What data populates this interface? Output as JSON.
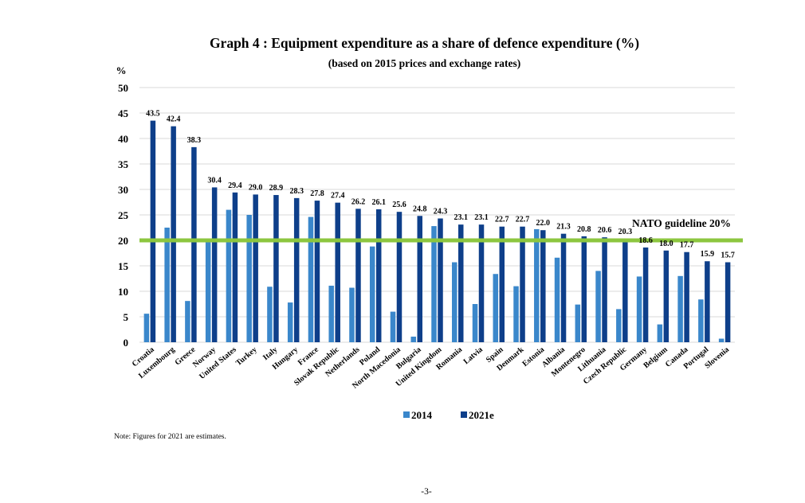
{
  "chart_data": {
    "type": "bar",
    "title": "Graph 4 : Equipment expenditure as a share of defence expenditure (%)",
    "subtitle": "(based on 2015 prices and exchange rates)",
    "ylabel": "%",
    "xlabel": "",
    "ylim": [
      0,
      50
    ],
    "yticks": [
      0,
      5,
      10,
      15,
      20,
      25,
      30,
      35,
      40,
      45,
      50
    ],
    "grid": true,
    "legend_position": "bottom-center",
    "categories": [
      "Croatia",
      "Luxembourg",
      "Greece",
      "Norway",
      "United States",
      "Turkey",
      "Italy",
      "Hungary",
      "France",
      "Slovak Republic",
      "Netherlands",
      "Poland",
      "North Macedonia",
      "Bulgaria",
      "United Kingdom",
      "Romania",
      "Latvia",
      "Spain",
      "Denmark",
      "Estonia",
      "Albania",
      "Montenegro",
      "Lithuania",
      "Czech Republic",
      "Germany",
      "Belgium",
      "Canada",
      "Portugal",
      "Slovenia"
    ],
    "series": [
      {
        "name": "2014",
        "color": "#3a87cb",
        "values": [
          5.6,
          22.5,
          8.1,
          20.0,
          26.0,
          25.0,
          10.9,
          7.8,
          24.6,
          11.1,
          10.7,
          18.8,
          6.0,
          1.1,
          22.8,
          15.7,
          7.5,
          13.4,
          11.0,
          22.2,
          16.6,
          7.4,
          14.0,
          6.5,
          12.9,
          3.5,
          13.0,
          8.4,
          0.7
        ],
        "labeled": false
      },
      {
        "name": "2021e",
        "color": "#0e3f8a",
        "values": [
          43.5,
          42.4,
          38.3,
          30.4,
          29.4,
          29.0,
          28.9,
          28.3,
          27.8,
          27.4,
          26.2,
          26.1,
          25.6,
          24.8,
          24.3,
          23.1,
          23.1,
          22.7,
          22.7,
          22.0,
          21.3,
          20.8,
          20.6,
          20.3,
          18.6,
          18.0,
          17.7,
          15.9,
          15.7
        ],
        "labels": [
          "43.5",
          "42.4",
          "38.3",
          "30.4",
          "29.4",
          "29.0",
          "28.9",
          "28.3",
          "27.8",
          "27.4",
          "26.2",
          "26.1",
          "25.6",
          "24.8",
          "24.3",
          "23.1",
          "23.1",
          "22.7",
          "22.7",
          "22.0",
          "21.3",
          "20.8",
          "20.6",
          "20.3",
          "18.6",
          "18.0",
          "17.7",
          "15.9",
          "15.7"
        ],
        "labeled": true
      }
    ],
    "reference_line": {
      "value": 20,
      "label": "NATO guideline 20%",
      "color": "#8cc63f"
    },
    "gridline_color": "#d9d9d9"
  },
  "note": "Note: Figures for 2021 are estimates.",
  "page_number": "-3-"
}
